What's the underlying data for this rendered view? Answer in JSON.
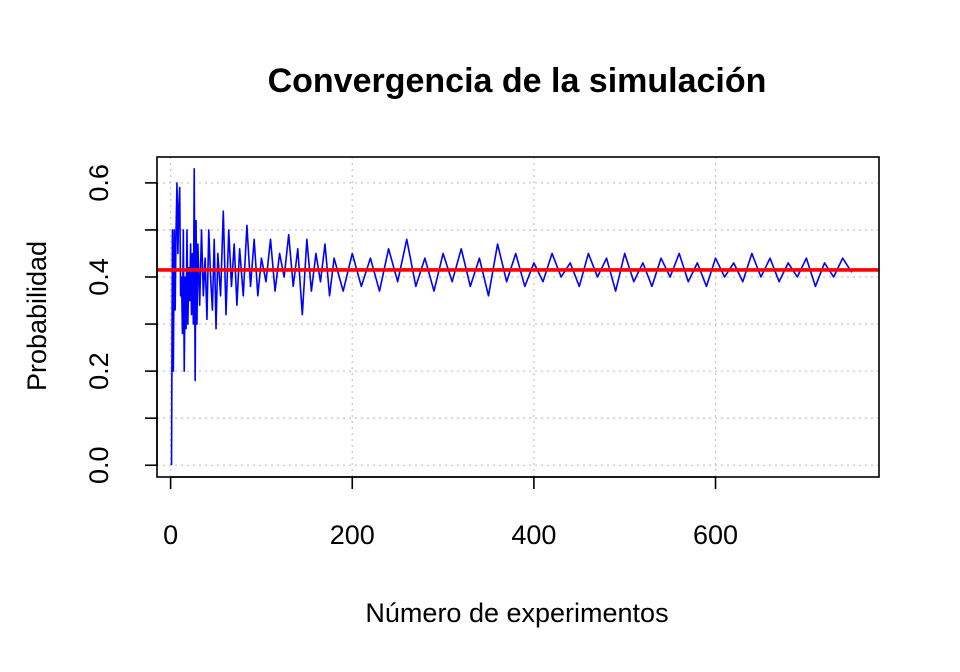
{
  "chart_data": {
    "type": "line",
    "title": "Convergencia de la simulación",
    "xlabel": "Número de experimentos",
    "ylabel": "Probabilidad",
    "xlim": [
      -15,
      780
    ],
    "ylim": [
      -0.025,
      0.655
    ],
    "x_ticks": [
      0,
      200,
      400,
      600
    ],
    "x_tick_labels": [
      "0",
      "200",
      "400",
      "600"
    ],
    "y_ticks": [
      0.0,
      0.1,
      0.2,
      0.3,
      0.4,
      0.5,
      0.6
    ],
    "y_tick_labels": [
      "0.0",
      "",
      "0.2",
      "",
      "0.4",
      "",
      "0.6"
    ],
    "grid": true,
    "series": [
      {
        "name": "",
        "color": "#0000ff",
        "x": [
          1,
          2,
          3,
          4,
          5,
          6,
          7,
          8,
          9,
          10,
          11,
          12,
          13,
          14,
          15,
          16,
          17,
          18,
          19,
          20,
          21,
          22,
          23,
          24,
          25,
          26,
          27,
          28,
          29,
          30,
          32,
          34,
          36,
          38,
          40,
          42,
          44,
          46,
          48,
          50,
          52,
          55,
          58,
          61,
          64,
          67,
          70,
          73,
          76,
          80,
          84,
          88,
          92,
          96,
          100,
          105,
          110,
          115,
          120,
          125,
          130,
          135,
          140,
          145,
          150,
          155,
          160,
          165,
          170,
          175,
          180,
          190,
          200,
          210,
          220,
          230,
          240,
          250,
          260,
          270,
          280,
          290,
          300,
          310,
          320,
          330,
          340,
          350,
          360,
          370,
          380,
          390,
          400,
          410,
          420,
          430,
          440,
          450,
          460,
          470,
          480,
          490,
          500,
          510,
          520,
          530,
          540,
          550,
          560,
          570,
          580,
          590,
          600,
          610,
          620,
          630,
          640,
          650,
          660,
          670,
          680,
          690,
          700,
          710,
          720,
          730,
          740,
          750
        ],
        "values": [
          0.0,
          0.5,
          0.2,
          0.5,
          0.33,
          0.5,
          0.6,
          0.45,
          0.55,
          0.59,
          0.36,
          0.4,
          0.28,
          0.5,
          0.2,
          0.4,
          0.29,
          0.5,
          0.3,
          0.42,
          0.35,
          0.47,
          0.32,
          0.45,
          0.3,
          0.63,
          0.18,
          0.52,
          0.3,
          0.47,
          0.34,
          0.5,
          0.36,
          0.44,
          0.31,
          0.5,
          0.4,
          0.33,
          0.48,
          0.29,
          0.45,
          0.36,
          0.54,
          0.32,
          0.5,
          0.38,
          0.47,
          0.34,
          0.46,
          0.36,
          0.51,
          0.38,
          0.48,
          0.36,
          0.44,
          0.39,
          0.48,
          0.37,
          0.45,
          0.4,
          0.49,
          0.38,
          0.46,
          0.32,
          0.48,
          0.37,
          0.45,
          0.39,
          0.47,
          0.36,
          0.44,
          0.37,
          0.45,
          0.38,
          0.44,
          0.37,
          0.46,
          0.39,
          0.48,
          0.38,
          0.44,
          0.37,
          0.45,
          0.39,
          0.46,
          0.38,
          0.44,
          0.36,
          0.47,
          0.39,
          0.45,
          0.38,
          0.43,
          0.39,
          0.45,
          0.4,
          0.43,
          0.38,
          0.45,
          0.4,
          0.44,
          0.37,
          0.45,
          0.39,
          0.43,
          0.38,
          0.44,
          0.4,
          0.45,
          0.39,
          0.43,
          0.38,
          0.44,
          0.4,
          0.43,
          0.39,
          0.45,
          0.4,
          0.44,
          0.39,
          0.43,
          0.4,
          0.44,
          0.38,
          0.43,
          0.4,
          0.44,
          0.41
        ]
      }
    ],
    "reference_line": {
      "y": 0.415,
      "color": "#ff0000"
    }
  }
}
